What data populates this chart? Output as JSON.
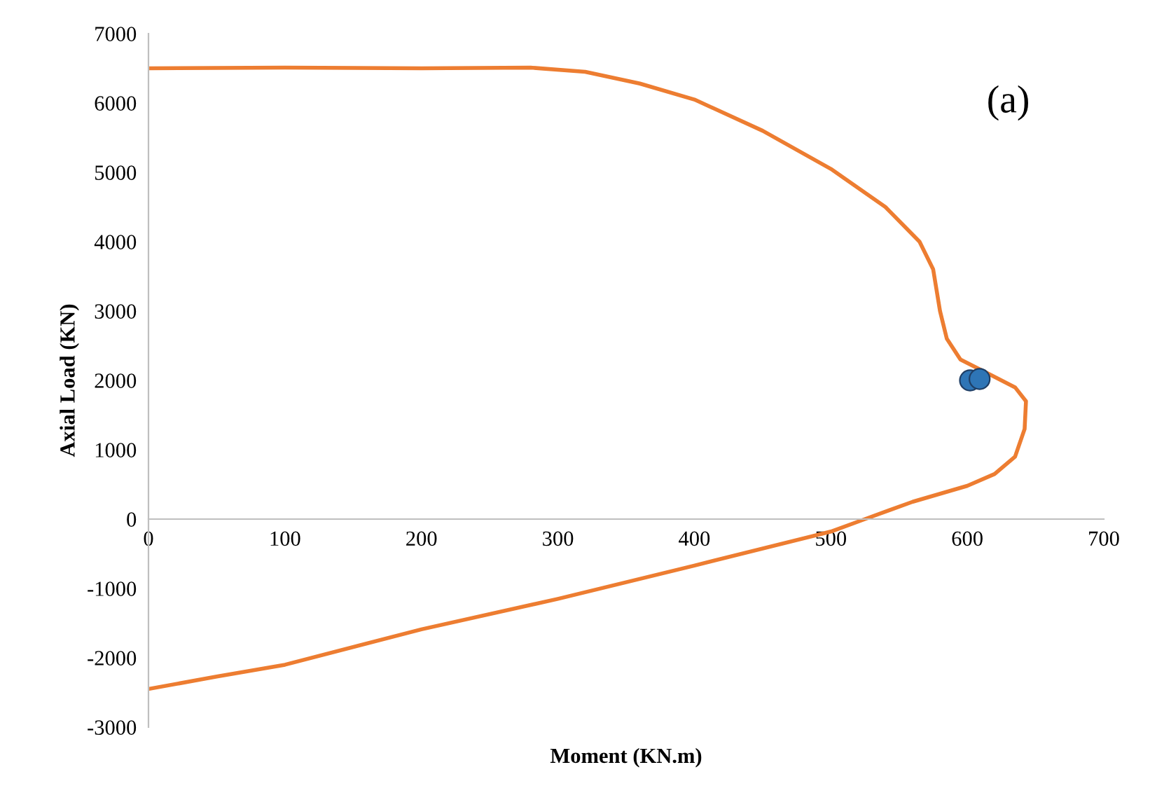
{
  "chart_data": {
    "type": "line",
    "xlabel": "Moment (KN.m)",
    "ylabel": "Axial Load (KN)",
    "xlim": [
      0,
      700
    ],
    "ylim": [
      -3000,
      7000
    ],
    "xticks": [
      0,
      100,
      200,
      300,
      400,
      500,
      600,
      700
    ],
    "yticks": [
      -3000,
      -2000,
      -1000,
      0,
      1000,
      2000,
      3000,
      4000,
      5000,
      6000,
      7000
    ],
    "grid": false,
    "legend": false,
    "annotations": [
      "(a)"
    ],
    "series": [
      {
        "color": "#ed7d31",
        "marker": "none",
        "x": [
          0,
          100,
          200,
          280,
          320,
          360,
          400,
          450,
          500,
          540,
          565,
          575,
          580,
          585,
          595,
          615,
          635,
          643,
          642,
          635,
          620,
          600,
          560,
          525,
          500,
          400,
          300,
          200,
          100,
          50,
          0
        ],
        "values": [
          6500,
          6510,
          6500,
          6510,
          6450,
          6280,
          6050,
          5600,
          5050,
          4500,
          4000,
          3600,
          3000,
          2600,
          2300,
          2100,
          1900,
          1700,
          1300,
          900,
          650,
          480,
          250,
          0,
          -180,
          -670,
          -1150,
          -1590,
          -2100,
          -2270,
          -2450
        ]
      },
      {
        "type": "scatter",
        "color": "#2e75b6",
        "marker": "circle",
        "x": [
          602,
          609
        ],
        "values": [
          2000,
          2020
        ]
      }
    ]
  }
}
